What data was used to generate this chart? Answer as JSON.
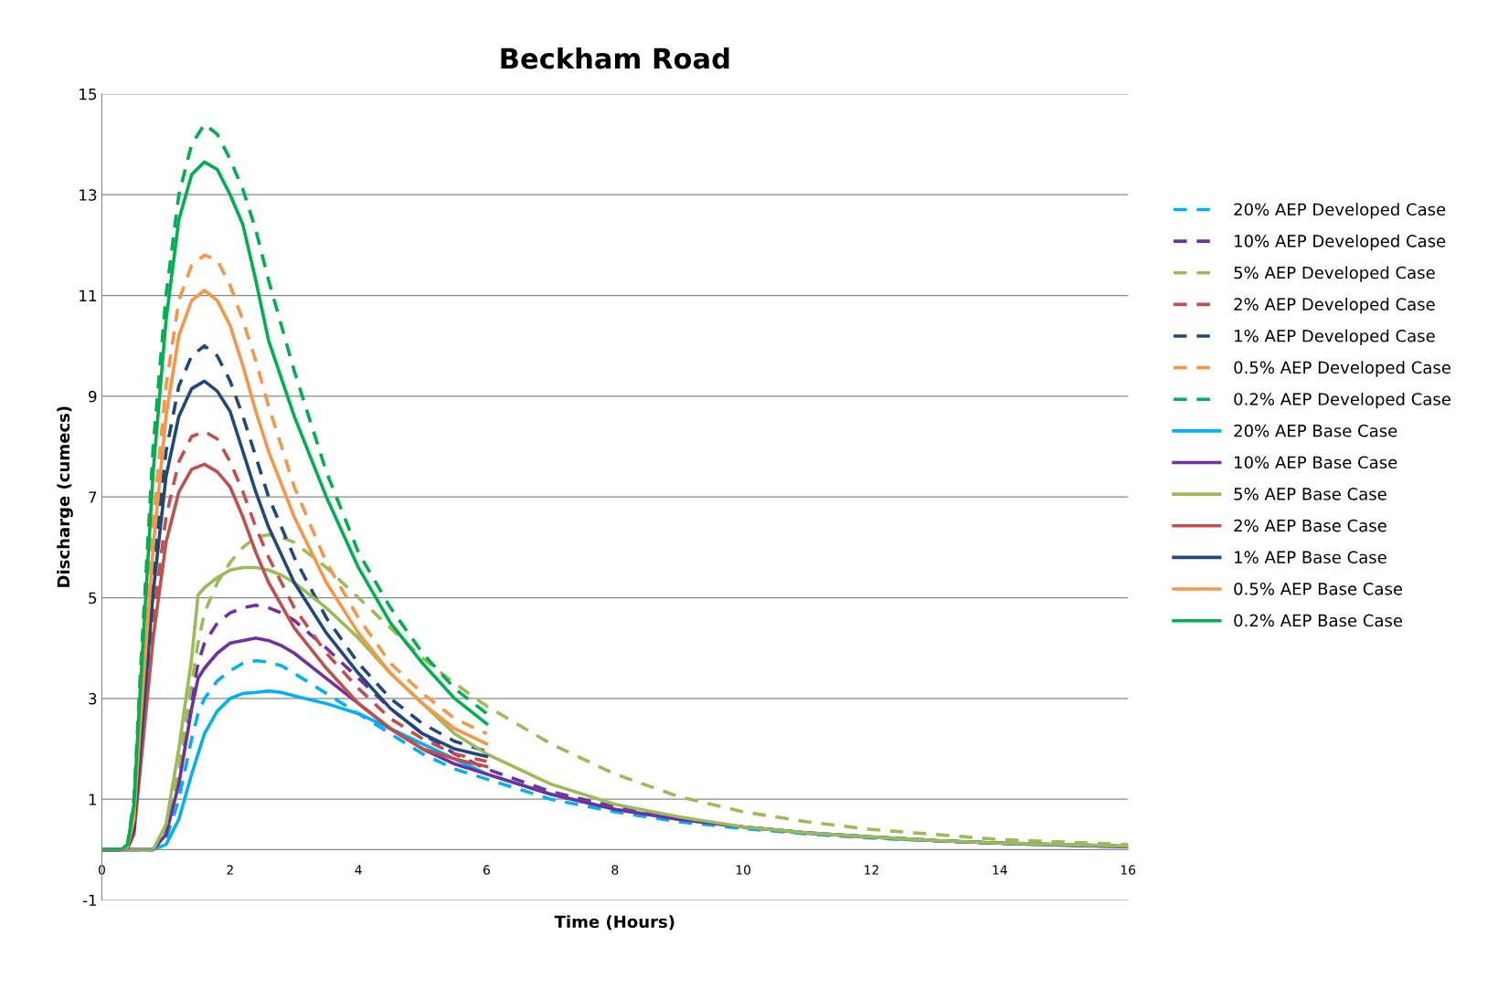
{
  "chart_data": {
    "type": "line",
    "title": "Beckham Road",
    "xlabel": "Time (Hours)",
    "ylabel": "Discharge (cumecs)",
    "xlim": [
      0,
      16
    ],
    "xticks": [
      0,
      2,
      4,
      6,
      8,
      10,
      12,
      14,
      16
    ],
    "ylim": [
      -1,
      15
    ],
    "yticks": [
      -1,
      1,
      3,
      5,
      7,
      9,
      11,
      13,
      15
    ],
    "grid": "y",
    "legend": "right",
    "marker": "none",
    "series": [
      {
        "name": "20% AEP Developed Case",
        "color": "#00b0f0",
        "line_style": "dashed",
        "x": [
          0,
          0.6,
          0.8,
          1.0,
          1.2,
          1.4,
          1.5,
          1.6,
          1.8,
          2.0,
          2.2,
          2.4,
          2.6,
          2.8,
          3.0,
          3.5,
          4.0,
          4.5,
          5.0,
          5.5,
          6.0,
          7,
          8,
          9,
          10,
          11,
          12,
          13,
          14,
          15,
          16
        ],
        "values": [
          0,
          0,
          0,
          0.2,
          1.0,
          2.2,
          2.7,
          3.0,
          3.35,
          3.55,
          3.7,
          3.75,
          3.72,
          3.65,
          3.5,
          3.1,
          2.7,
          2.3,
          1.9,
          1.6,
          1.4,
          1.0,
          0.75,
          0.55,
          0.42,
          0.31,
          0.23,
          0.17,
          0.12,
          0.09,
          0.06
        ]
      },
      {
        "name": "10% AEP Developed Case",
        "color": "#7030a0",
        "line_style": "dashed",
        "x": [
          0,
          0.6,
          0.8,
          1.0,
          1.2,
          1.4,
          1.5,
          1.6,
          1.8,
          2.0,
          2.2,
          2.4,
          2.6,
          2.8,
          3.0,
          3.5,
          4.0,
          4.5,
          5.0,
          5.5,
          6.0,
          7,
          8,
          9,
          10,
          11,
          12,
          13,
          14,
          15,
          16
        ],
        "values": [
          0,
          0,
          0,
          0.3,
          1.4,
          3.0,
          3.7,
          4.1,
          4.5,
          4.7,
          4.8,
          4.85,
          4.8,
          4.7,
          4.55,
          4.0,
          3.4,
          2.8,
          2.3,
          1.9,
          1.6,
          1.15,
          0.85,
          0.6,
          0.45,
          0.33,
          0.25,
          0.18,
          0.13,
          0.1,
          0.07
        ]
      },
      {
        "name": "5% AEP Developed Case",
        "color": "#9bbb59",
        "line_style": "dashed",
        "x": [
          0,
          0.6,
          0.8,
          1.0,
          1.2,
          1.4,
          1.5,
          1.6,
          1.8,
          2.0,
          2.2,
          2.4,
          2.6,
          2.8,
          3.0,
          3.5,
          4.0,
          4.5,
          5.0,
          5.5,
          6.0,
          7,
          8,
          9,
          10,
          11,
          12,
          13,
          14,
          15,
          16
        ],
        "values": [
          0,
          0,
          0,
          0.4,
          1.6,
          3.3,
          4.1,
          4.7,
          5.3,
          5.7,
          6.0,
          6.2,
          6.25,
          6.2,
          6.1,
          5.6,
          5.0,
          4.4,
          3.8,
          3.3,
          2.85,
          2.1,
          1.5,
          1.05,
          0.75,
          0.55,
          0.4,
          0.3,
          0.2,
          0.15,
          0.1
        ]
      },
      {
        "name": "2% AEP Developed Case",
        "color": "#c0504d",
        "line_style": "dashed",
        "x": [
          0,
          0.3,
          0.4,
          0.5,
          0.6,
          0.8,
          1.0,
          1.2,
          1.4,
          1.6,
          1.8,
          2.0,
          2.2,
          2.4,
          2.6,
          3.0,
          3.5,
          4.0,
          4.5,
          5.0,
          5.5,
          6.0
        ],
        "values": [
          0,
          0,
          0.03,
          0.4,
          1.9,
          4.6,
          6.6,
          7.7,
          8.2,
          8.3,
          8.15,
          7.7,
          7.1,
          6.4,
          5.8,
          4.8,
          3.9,
          3.2,
          2.6,
          2.2,
          1.9,
          1.75
        ]
      },
      {
        "name": "1% AEP Developed Case",
        "color": "#1f497d",
        "line_style": "dashed",
        "x": [
          0,
          0.3,
          0.4,
          0.5,
          0.6,
          0.8,
          1.0,
          1.2,
          1.4,
          1.6,
          1.8,
          2.0,
          2.2,
          2.4,
          2.6,
          3.0,
          3.5,
          4.0,
          4.5,
          5.0,
          5.5,
          6.0
        ],
        "values": [
          0,
          0,
          0.05,
          0.5,
          2.3,
          5.5,
          7.9,
          9.2,
          9.8,
          10.0,
          9.8,
          9.3,
          8.6,
          7.8,
          7.0,
          5.8,
          4.6,
          3.7,
          3.0,
          2.5,
          2.15,
          1.95
        ]
      },
      {
        "name": "0.5% AEP Developed Case",
        "color": "#f79646",
        "line_style": "dashed",
        "x": [
          0,
          0.3,
          0.4,
          0.5,
          0.6,
          0.8,
          1.0,
          1.2,
          1.4,
          1.6,
          1.8,
          2.0,
          2.2,
          2.4,
          2.6,
          3.0,
          3.5,
          4.0,
          4.5,
          5.0,
          5.5,
          6.0
        ],
        "values": [
          0,
          0,
          0.05,
          0.7,
          2.8,
          6.5,
          9.2,
          10.9,
          11.6,
          11.8,
          11.7,
          11.2,
          10.5,
          9.7,
          8.8,
          7.2,
          5.7,
          4.6,
          3.7,
          3.1,
          2.6,
          2.3
        ]
      },
      {
        "name": "0.2% AEP Developed Case",
        "color": "#00b050",
        "line_style": "dashed",
        "x": [
          0,
          0.3,
          0.4,
          0.5,
          0.6,
          0.8,
          1.0,
          1.2,
          1.4,
          1.6,
          1.8,
          2.0,
          2.2,
          2.4,
          2.6,
          3.0,
          3.5,
          4.0,
          4.5,
          5.0,
          5.5,
          6.0
        ],
        "values": [
          0,
          0,
          0.1,
          1,
          3.5,
          8,
          11,
          13,
          14,
          14.4,
          14.2,
          13.7,
          13.1,
          12.3,
          11.3,
          9.5,
          7.5,
          5.9,
          4.8,
          3.9,
          3.2,
          2.7
        ]
      },
      {
        "name": "20% AEP Base Case",
        "color": "#00b0f0",
        "line_style": "solid",
        "x": [
          0,
          0.6,
          0.8,
          1.0,
          1.2,
          1.4,
          1.5,
          1.6,
          1.8,
          2.0,
          2.2,
          2.4,
          2.6,
          2.8,
          3.0,
          3.5,
          4.0,
          4.5,
          5.0,
          5.5,
          6.0,
          7,
          8,
          9,
          10,
          11,
          12,
          13,
          14,
          15,
          16
        ],
        "values": [
          0,
          0,
          0,
          0.1,
          0.6,
          1.5,
          1.9,
          2.3,
          2.75,
          3.0,
          3.1,
          3.12,
          3.15,
          3.12,
          3.05,
          2.9,
          2.7,
          2.4,
          2.1,
          1.8,
          1.5,
          1.1,
          0.8,
          0.6,
          0.45,
          0.33,
          0.25,
          0.18,
          0.13,
          0.09,
          0.06
        ]
      },
      {
        "name": "10% AEP Base Case",
        "color": "#7030a0",
        "line_style": "solid",
        "x": [
          0,
          0.6,
          0.8,
          1.0,
          1.2,
          1.4,
          1.5,
          1.6,
          1.8,
          2.0,
          2.2,
          2.4,
          2.6,
          2.8,
          3.0,
          3.5,
          4.0,
          4.5,
          5.0,
          5.5,
          6.0,
          7,
          8,
          9,
          10,
          11,
          12,
          13,
          14,
          15,
          16
        ],
        "values": [
          0,
          0,
          0,
          0.3,
          1.3,
          2.8,
          3.4,
          3.6,
          3.9,
          4.1,
          4.15,
          4.2,
          4.15,
          4.05,
          3.9,
          3.4,
          2.9,
          2.4,
          2.0,
          1.7,
          1.5,
          1.1,
          0.8,
          0.6,
          0.45,
          0.33,
          0.25,
          0.18,
          0.13,
          0.09,
          0.06
        ]
      },
      {
        "name": "5% AEP Base Case",
        "color": "#9bbb59",
        "line_style": "solid",
        "x": [
          0,
          0.6,
          0.8,
          1.0,
          1.2,
          1.4,
          1.5,
          1.6,
          1.8,
          2.0,
          2.2,
          2.4,
          2.6,
          2.8,
          3.0,
          3.5,
          4.0,
          4.5,
          5.0,
          5.5,
          6.0,
          7,
          8,
          9,
          10,
          11,
          12,
          13,
          14,
          15,
          16
        ],
        "values": [
          0,
          0,
          0,
          0.5,
          2.0,
          3.8,
          5.05,
          5.2,
          5.4,
          5.55,
          5.6,
          5.6,
          5.55,
          5.45,
          5.3,
          4.8,
          4.2,
          3.5,
          2.9,
          2.3,
          1.9,
          1.3,
          0.9,
          0.65,
          0.45,
          0.33,
          0.25,
          0.18,
          0.13,
          0.1,
          0.07
        ]
      },
      {
        "name": "2% AEP Base Case",
        "color": "#c0504d",
        "line_style": "solid",
        "x": [
          0,
          0.3,
          0.4,
          0.5,
          0.6,
          0.8,
          1.0,
          1.2,
          1.4,
          1.6,
          1.8,
          2.0,
          2.2,
          2.4,
          2.6,
          3.0,
          3.5,
          4.0,
          4.5,
          5.0,
          5.5,
          6.0
        ],
        "values": [
          0,
          0,
          0.02,
          0.3,
          1.6,
          4.2,
          6.1,
          7.1,
          7.55,
          7.65,
          7.5,
          7.2,
          6.6,
          5.9,
          5.3,
          4.4,
          3.6,
          2.9,
          2.4,
          2.0,
          1.8,
          1.65
        ]
      },
      {
        "name": "1% AEP Base Case",
        "color": "#1f497d",
        "line_style": "solid",
        "x": [
          0,
          0.3,
          0.4,
          0.5,
          0.6,
          0.8,
          1.0,
          1.2,
          1.4,
          1.6,
          1.8,
          2.0,
          2.2,
          2.4,
          2.6,
          3.0,
          3.5,
          4.0,
          4.5,
          5.0,
          5.5,
          6.0
        ],
        "values": [
          0,
          0,
          0.04,
          0.4,
          2.0,
          5.1,
          7.4,
          8.6,
          9.15,
          9.3,
          9.1,
          8.7,
          7.9,
          7.1,
          6.4,
          5.3,
          4.3,
          3.5,
          2.8,
          2.3,
          2.0,
          1.85
        ]
      },
      {
        "name": "0.5% AEP Base Case",
        "color": "#f79646",
        "line_style": "solid",
        "x": [
          0,
          0.3,
          0.4,
          0.5,
          0.6,
          0.8,
          1.0,
          1.2,
          1.4,
          1.6,
          1.8,
          2.0,
          2.2,
          2.4,
          2.6,
          3.0,
          3.5,
          4.0,
          4.5,
          5.0,
          5.5,
          6.0
        ],
        "values": [
          0,
          0,
          0.05,
          0.6,
          2.5,
          6,
          8.6,
          10.2,
          10.9,
          11.1,
          10.9,
          10.4,
          9.6,
          8.7,
          7.9,
          6.6,
          5.3,
          4.3,
          3.5,
          2.9,
          2.4,
          2.1
        ]
      },
      {
        "name": "0.2% AEP Base Case",
        "color": "#00b050",
        "line_style": "solid",
        "x": [
          0,
          0.3,
          0.4,
          0.5,
          0.6,
          0.8,
          1.0,
          1.2,
          1.4,
          1.6,
          1.8,
          2.0,
          2.2,
          2.4,
          2.6,
          3.0,
          3.5,
          4.0,
          4.5,
          5.0,
          5.5,
          6.0
        ],
        "values": [
          0,
          0,
          0.1,
          0.9,
          3.2,
          7.5,
          10.5,
          12.5,
          13.4,
          13.65,
          13.5,
          13.0,
          12.4,
          11.3,
          10.1,
          8.6,
          7.0,
          5.6,
          4.5,
          3.7,
          3.0,
          2.5
        ]
      }
    ]
  }
}
